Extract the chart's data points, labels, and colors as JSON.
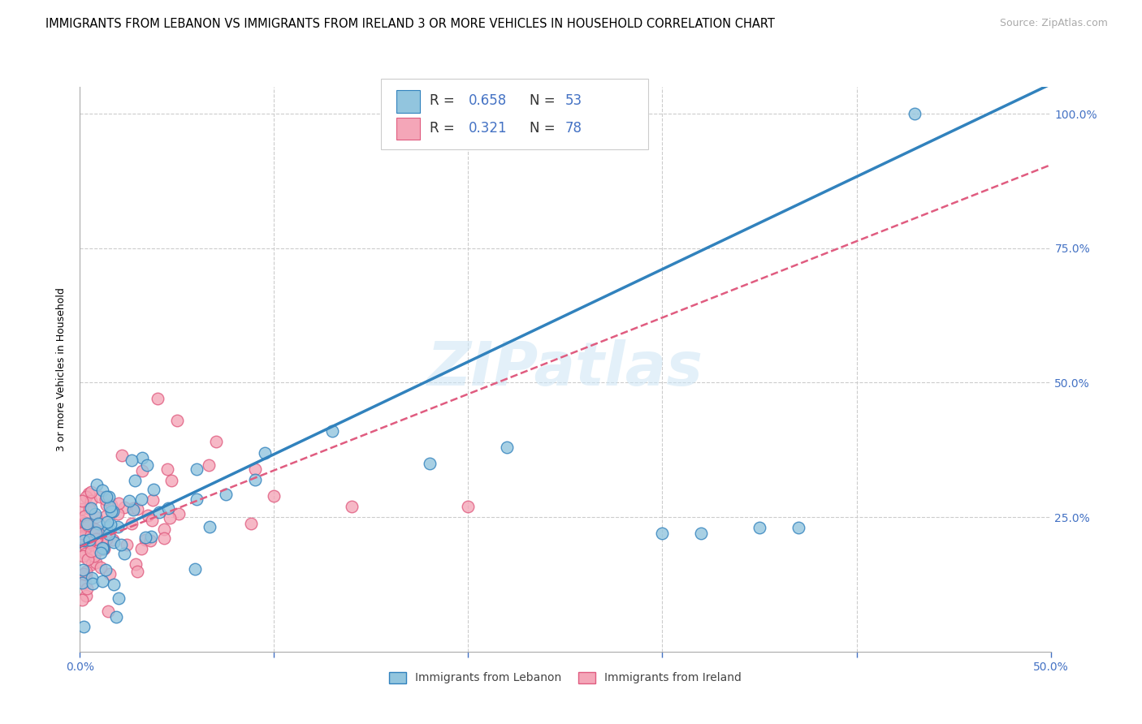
{
  "title": "IMMIGRANTS FROM LEBANON VS IMMIGRANTS FROM IRELAND 3 OR MORE VEHICLES IN HOUSEHOLD CORRELATION CHART",
  "source": "Source: ZipAtlas.com",
  "ylabel": "3 or more Vehicles in Household",
  "legend_label1": "Immigrants from Lebanon",
  "legend_label2": "Immigrants from Ireland",
  "r1": 0.658,
  "n1": 53,
  "r2": 0.321,
  "n2": 78,
  "color_blue": "#92c5de",
  "color_pink": "#f4a6b8",
  "line_color_blue": "#3182bd",
  "line_color_pink": "#e05c80",
  "watermark": "ZIPatlas",
  "xmin": 0.0,
  "xmax": 0.5,
  "ymin": 0.0,
  "ymax": 1.05,
  "tick_color": "#4472c4",
  "grid_color": "#cccccc",
  "blue_line_slope": 1.72,
  "blue_line_intercept": 0.195,
  "pink_line_slope": 1.42,
  "pink_line_intercept": 0.195
}
